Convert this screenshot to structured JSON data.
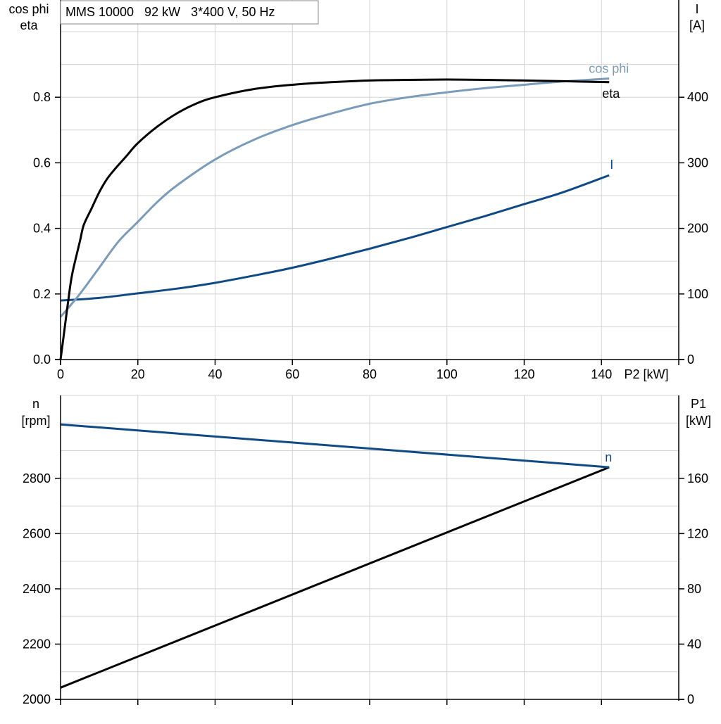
{
  "title": "MMS 10000   92 kW   3*400 V, 50 Hz",
  "colors": {
    "eta": "#000000",
    "cosphi": "#7a9cba",
    "current": "#0f4a85",
    "speed": "#0f4a85",
    "p1": "#000000",
    "grid": "#d3d3d3",
    "axis": "#000000"
  },
  "chart_data": [
    {
      "type": "line",
      "x": {
        "label": "P2 [kW]",
        "range": [
          0,
          160
        ],
        "ticks": [
          0,
          20,
          40,
          60,
          80,
          100,
          120,
          140
        ],
        "tick_labels": [
          "0",
          "20",
          "40",
          "60",
          "80",
          "100",
          "120",
          "140"
        ]
      },
      "y_left": {
        "label_line1": "cos phi",
        "label_line2": "eta",
        "range": [
          0,
          1.0
        ],
        "ticks": [
          0.0,
          0.2,
          0.4,
          0.6,
          0.8
        ],
        "tick_labels": [
          "0.0",
          "0.2",
          "0.4",
          "0.6",
          "0.8"
        ]
      },
      "y_right": {
        "label_line1": "I",
        "label_line2": "[A]",
        "range": [
          0,
          500
        ],
        "ticks": [
          0,
          100,
          200,
          300,
          400
        ],
        "tick_labels": [
          "0",
          "100",
          "200",
          "300",
          "400"
        ]
      },
      "grid": true,
      "series": [
        {
          "name": "eta",
          "axis": "left",
          "label": "eta",
          "points": [
            [
              0,
              0
            ],
            [
              1,
              0.09
            ],
            [
              2,
              0.18
            ],
            [
              3,
              0.26
            ],
            [
              5,
              0.36
            ],
            [
              6,
              0.41
            ],
            [
              8,
              0.46
            ],
            [
              10,
              0.51
            ],
            [
              12,
              0.55
            ],
            [
              14,
              0.58
            ],
            [
              17,
              0.62
            ],
            [
              20,
              0.66
            ],
            [
              25,
              0.71
            ],
            [
              30,
              0.75
            ],
            [
              35,
              0.78
            ],
            [
              40,
              0.8
            ],
            [
              50,
              0.825
            ],
            [
              60,
              0.838
            ],
            [
              70,
              0.846
            ],
            [
              80,
              0.851
            ],
            [
              90,
              0.853
            ],
            [
              100,
              0.854
            ],
            [
              110,
              0.853
            ],
            [
              120,
              0.851
            ],
            [
              130,
              0.849
            ],
            [
              142,
              0.846
            ]
          ]
        },
        {
          "name": "cos phi",
          "axis": "left",
          "label": "cos phi",
          "points": [
            [
              0,
              0.13
            ],
            [
              5,
              0.2
            ],
            [
              10,
              0.28
            ],
            [
              15,
              0.36
            ],
            [
              20,
              0.42
            ],
            [
              25,
              0.48
            ],
            [
              30,
              0.53
            ],
            [
              40,
              0.61
            ],
            [
              50,
              0.67
            ],
            [
              60,
              0.715
            ],
            [
              70,
              0.75
            ],
            [
              80,
              0.78
            ],
            [
              90,
              0.8
            ],
            [
              100,
              0.815
            ],
            [
              110,
              0.828
            ],
            [
              120,
              0.838
            ],
            [
              130,
              0.848
            ],
            [
              142,
              0.857
            ]
          ]
        },
        {
          "name": "I",
          "axis": "right",
          "label": "I",
          "points": [
            [
              0,
              90
            ],
            [
              10,
              94
            ],
            [
              20,
              101
            ],
            [
              30,
              108
            ],
            [
              40,
              117
            ],
            [
              50,
              128
            ],
            [
              60,
              140
            ],
            [
              70,
              154
            ],
            [
              80,
              169
            ],
            [
              90,
              185
            ],
            [
              100,
              202
            ],
            [
              110,
              219
            ],
            [
              120,
              237
            ],
            [
              130,
              255
            ],
            [
              142,
              281
            ]
          ]
        }
      ]
    },
    {
      "type": "line",
      "x": {
        "range": [
          0,
          160
        ],
        "ticks": [
          0,
          20,
          40,
          60,
          80,
          100,
          120,
          140
        ]
      },
      "y_left": {
        "label_line1": "n",
        "label_line2": "[rpm]",
        "range": [
          2000,
          3100
        ],
        "ticks": [
          2000,
          2200,
          2400,
          2600,
          2800
        ],
        "tick_labels": [
          "2000",
          "2200",
          "2400",
          "2600",
          "2800"
        ]
      },
      "y_right": {
        "label_line1": "P1",
        "label_line2": "[kW]",
        "range": [
          0,
          220
        ],
        "ticks": [
          0,
          40,
          80,
          120,
          160
        ],
        "tick_labels": [
          "0",
          "40",
          "80",
          "120",
          "160"
        ]
      },
      "grid": true,
      "series": [
        {
          "name": "n",
          "axis": "left",
          "label": "n",
          "points": [
            [
              0,
              2995
            ],
            [
              142,
              2840
            ]
          ]
        },
        {
          "name": "P1",
          "axis": "right",
          "label": "",
          "points": [
            [
              0,
              8.5
            ],
            [
              142,
              168
            ]
          ]
        }
      ]
    }
  ]
}
